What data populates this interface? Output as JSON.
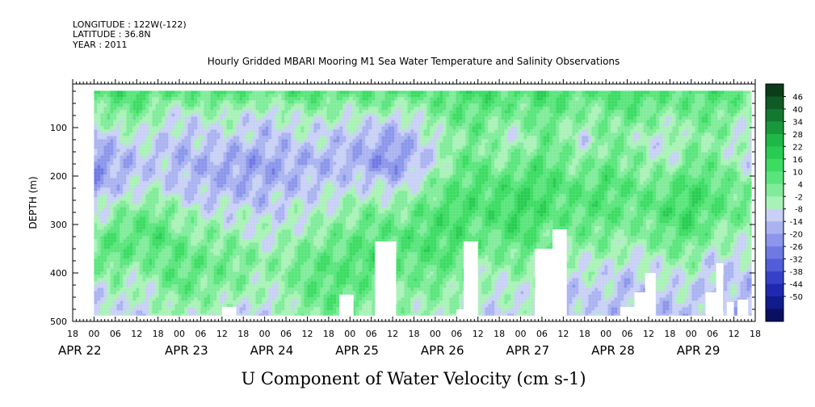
{
  "header": {
    "longitude": "LONGITUDE : 122W(-122)",
    "latitude": "LATITUDE : 36.8N",
    "year": "YEAR : 2011",
    "title": "Hourly Gridded MBARI Mooring M1 Sea Water Temperature and Salinity Observations"
  },
  "footer": {
    "variable": "U Component of Water Velocity (cm s-1)"
  },
  "chart_data": {
    "type": "heatmap",
    "title": "Hourly Gridded MBARI Mooring M1 Sea Water Temperature and Salinity Observations",
    "xlabel": "",
    "ylabel": "DEPTH (m)",
    "colorbar_label": "U Component of Water Velocity (cm s-1)",
    "y_range": [
      500,
      10
    ],
    "y_ticks": [
      {
        "value": 100,
        "label": "100"
      },
      {
        "value": 200,
        "label": "200"
      },
      {
        "value": 300,
        "label": "300"
      },
      {
        "value": 400,
        "label": "400"
      },
      {
        "value": 500,
        "label": "500"
      }
    ],
    "x_range_hours": [
      -6,
      186
    ],
    "x_hour_ticks": [
      {
        "h": -6,
        "label": "18"
      },
      {
        "h": 0,
        "label": "00"
      },
      {
        "h": 6,
        "label": "06"
      },
      {
        "h": 12,
        "label": "12"
      },
      {
        "h": 18,
        "label": "18"
      },
      {
        "h": 24,
        "label": "00"
      },
      {
        "h": 30,
        "label": "06"
      },
      {
        "h": 36,
        "label": "12"
      },
      {
        "h": 42,
        "label": "18"
      },
      {
        "h": 48,
        "label": "00"
      },
      {
        "h": 54,
        "label": "06"
      },
      {
        "h": 60,
        "label": "12"
      },
      {
        "h": 66,
        "label": "18"
      },
      {
        "h": 72,
        "label": "00"
      },
      {
        "h": 78,
        "label": "06"
      },
      {
        "h": 84,
        "label": "12"
      },
      {
        "h": 90,
        "label": "18"
      },
      {
        "h": 96,
        "label": "00"
      },
      {
        "h": 102,
        "label": "06"
      },
      {
        "h": 108,
        "label": "12"
      },
      {
        "h": 114,
        "label": "18"
      },
      {
        "h": 120,
        "label": "00"
      },
      {
        "h": 126,
        "label": "06"
      },
      {
        "h": 132,
        "label": "12"
      },
      {
        "h": 138,
        "label": "18"
      },
      {
        "h": 144,
        "label": "00"
      },
      {
        "h": 150,
        "label": "06"
      },
      {
        "h": 156,
        "label": "12"
      },
      {
        "h": 162,
        "label": "18"
      },
      {
        "h": 168,
        "label": "00"
      },
      {
        "h": 174,
        "label": "06"
      },
      {
        "h": 180,
        "label": "12"
      },
      {
        "h": 186,
        "label": "18"
      }
    ],
    "date_labels": [
      {
        "h": -6,
        "label": "APR 22"
      },
      {
        "h": 24,
        "label": "APR 23"
      },
      {
        "h": 48,
        "label": "APR 24"
      },
      {
        "h": 72,
        "label": "APR 25"
      },
      {
        "h": 96,
        "label": "APR 26"
      },
      {
        "h": 120,
        "label": "APR 27"
      },
      {
        "h": 144,
        "label": "APR 28"
      },
      {
        "h": 168,
        "label": "APR 29"
      }
    ],
    "colorbar_levels": [
      "46",
      "40",
      "34",
      "28",
      "22",
      "16",
      "10",
      "4",
      "-2",
      "-8",
      "-14",
      "-20",
      "-26",
      "-32",
      "-38",
      "-44",
      "-50"
    ],
    "colorbar_colors": [
      "#0b3d1a",
      "#0f5a25",
      "#137830",
      "#18983b",
      "#1fb747",
      "#28cc52",
      "#3cdc63",
      "#5ae57c",
      "#80ec9a",
      "#a9f2b7",
      "#c8d0f5",
      "#aab3f0",
      "#8c96ea",
      "#6f79e2",
      "#525dd8",
      "#3741c8",
      "#2128b0",
      "#101c8a",
      "#0a0f60"
    ],
    "data_coverage": {
      "start_hour": 0,
      "end_hour": 185,
      "depth_top": 24,
      "depth_bottom": 488
    },
    "data_columns": [
      {
        "h": 0,
        "values": [
          12,
          2,
          -14,
          -22,
          -18,
          -8,
          4,
          8,
          -6,
          -10
        ]
      },
      {
        "h": 6,
        "values": [
          14,
          4,
          -10,
          -16,
          -10,
          2,
          12,
          10,
          0,
          -6
        ]
      },
      {
        "h": 12,
        "values": [
          16,
          6,
          -6,
          -12,
          -8,
          6,
          10,
          4,
          -4,
          -8
        ]
      },
      {
        "h": 18,
        "values": [
          12,
          -2,
          -8,
          -10,
          -4,
          8,
          14,
          8,
          2,
          -4
        ]
      },
      {
        "h": 24,
        "values": [
          10,
          -6,
          -12,
          -14,
          -10,
          0,
          6,
          12,
          10,
          0
        ]
      },
      {
        "h": 30,
        "values": [
          12,
          -4,
          -10,
          -14,
          -12,
          -4,
          4,
          8,
          6,
          -2
        ]
      },
      {
        "h": 36,
        "values": [
          14,
          -2,
          -8,
          -16,
          -14,
          -6,
          2,
          8,
          4,
          -4
        ]
      },
      {
        "h": 42,
        "values": [
          10,
          -4,
          -10,
          -18,
          -14,
          -6,
          0,
          6,
          2,
          -6
        ]
      },
      {
        "h": 48,
        "values": [
          8,
          -8,
          -12,
          -18,
          -14,
          -8,
          -4,
          2,
          -2,
          -8
        ]
      },
      {
        "h": 54,
        "values": [
          12,
          -4,
          -10,
          -16,
          -12,
          -6,
          -2,
          4,
          2,
          -4
        ]
      },
      {
        "h": 60,
        "values": [
          14,
          0,
          -8,
          -14,
          -10,
          -4,
          2,
          8,
          10,
          4
        ]
      },
      {
        "h": 66,
        "values": [
          12,
          -2,
          -10,
          -14,
          -8,
          -2,
          6,
          10,
          12,
          6
        ]
      },
      {
        "h": 72,
        "values": [
          10,
          -4,
          -12,
          -14,
          -6,
          2,
          8,
          12,
          10,
          4
        ]
      },
      {
        "h": 78,
        "values": [
          12,
          -2,
          -14,
          -18,
          -6,
          6,
          12,
          14,
          8,
          2
        ]
      },
      {
        "h": 84,
        "values": [
          14,
          -6,
          -18,
          -22,
          -8,
          4,
          10,
          10,
          6,
          0
        ]
      },
      {
        "h": 90,
        "values": [
          12,
          -4,
          -12,
          -14,
          -2,
          8,
          12,
          10,
          4,
          -2
        ]
      },
      {
        "h": 96,
        "values": [
          10,
          4,
          -4,
          -6,
          6,
          12,
          14,
          12,
          6,
          0
        ]
      },
      {
        "h": 102,
        "values": [
          14,
          8,
          2,
          6,
          12,
          16,
          14,
          10,
          2,
          -6
        ]
      },
      {
        "h": 108,
        "values": [
          16,
          10,
          6,
          10,
          14,
          12,
          8,
          4,
          -2,
          -8
        ]
      },
      {
        "h": 114,
        "values": [
          14,
          6,
          -2,
          4,
          12,
          14,
          10,
          2,
          -4,
          -8
        ]
      },
      {
        "h": 120,
        "values": [
          12,
          4,
          -4,
          8,
          16,
          18,
          14,
          6,
          -2,
          -6
        ]
      },
      {
        "h": 126,
        "values": [
          16,
          10,
          8,
          12,
          16,
          14,
          8,
          2,
          -6,
          -10
        ]
      },
      {
        "h": 132,
        "values": [
          14,
          6,
          2,
          8,
          12,
          10,
          4,
          -4,
          -10,
          -12
        ]
      },
      {
        "h": 138,
        "values": [
          10,
          2,
          -6,
          2,
          10,
          12,
          6,
          -2,
          -8,
          -10
        ]
      },
      {
        "h": 144,
        "values": [
          12,
          6,
          4,
          10,
          14,
          12,
          6,
          -2,
          -8,
          -10
        ]
      },
      {
        "h": 150,
        "values": [
          16,
          8,
          2,
          6,
          10,
          8,
          2,
          -6,
          -12,
          -12
        ]
      },
      {
        "h": 156,
        "values": [
          14,
          6,
          -4,
          0,
          8,
          10,
          4,
          -4,
          -10,
          -12
        ]
      },
      {
        "h": 162,
        "values": [
          10,
          2,
          -6,
          -2,
          10,
          14,
          10,
          0,
          -8,
          -12
        ]
      },
      {
        "h": 168,
        "values": [
          12,
          6,
          2,
          8,
          16,
          18,
          12,
          2,
          -6,
          -10
        ]
      },
      {
        "h": 174,
        "values": [
          14,
          8,
          4,
          6,
          12,
          10,
          2,
          -8,
          -12,
          -14
        ]
      },
      {
        "h": 180,
        "values": [
          10,
          4,
          -4,
          0,
          8,
          8,
          0,
          -6,
          -10,
          -12
        ]
      },
      {
        "h": 185,
        "values": [
          8,
          -2,
          -8,
          -6,
          4,
          6,
          -2,
          -8,
          -12,
          -14
        ]
      }
    ],
    "value_depths": [
      24,
      75,
      125,
      175,
      225,
      275,
      325,
      375,
      425,
      488
    ],
    "missing_regions": [
      {
        "h0": 79,
        "h1": 85,
        "d_top": 335
      },
      {
        "h0": 69,
        "h1": 73,
        "d_top": 445
      },
      {
        "h0": 104,
        "h1": 108,
        "d_top": 335
      },
      {
        "h0": 102,
        "h1": 104,
        "d_top": 475
      },
      {
        "h0": 124,
        "h1": 131,
        "d_top": 350
      },
      {
        "h0": 129,
        "h1": 133,
        "d_top": 310
      },
      {
        "h0": 152,
        "h1": 156,
        "d_top": 440
      },
      {
        "h0": 155,
        "h1": 158,
        "d_top": 400
      },
      {
        "h0": 148,
        "h1": 152,
        "d_top": 470
      },
      {
        "h0": 172,
        "h1": 176,
        "d_top": 440
      },
      {
        "h0": 175,
        "h1": 177,
        "d_top": 380
      },
      {
        "h0": 178,
        "h1": 180,
        "d_top": 460
      },
      {
        "h0": 181,
        "h1": 184,
        "d_top": 455
      },
      {
        "h0": 36,
        "h1": 40,
        "d_top": 470
      }
    ]
  }
}
